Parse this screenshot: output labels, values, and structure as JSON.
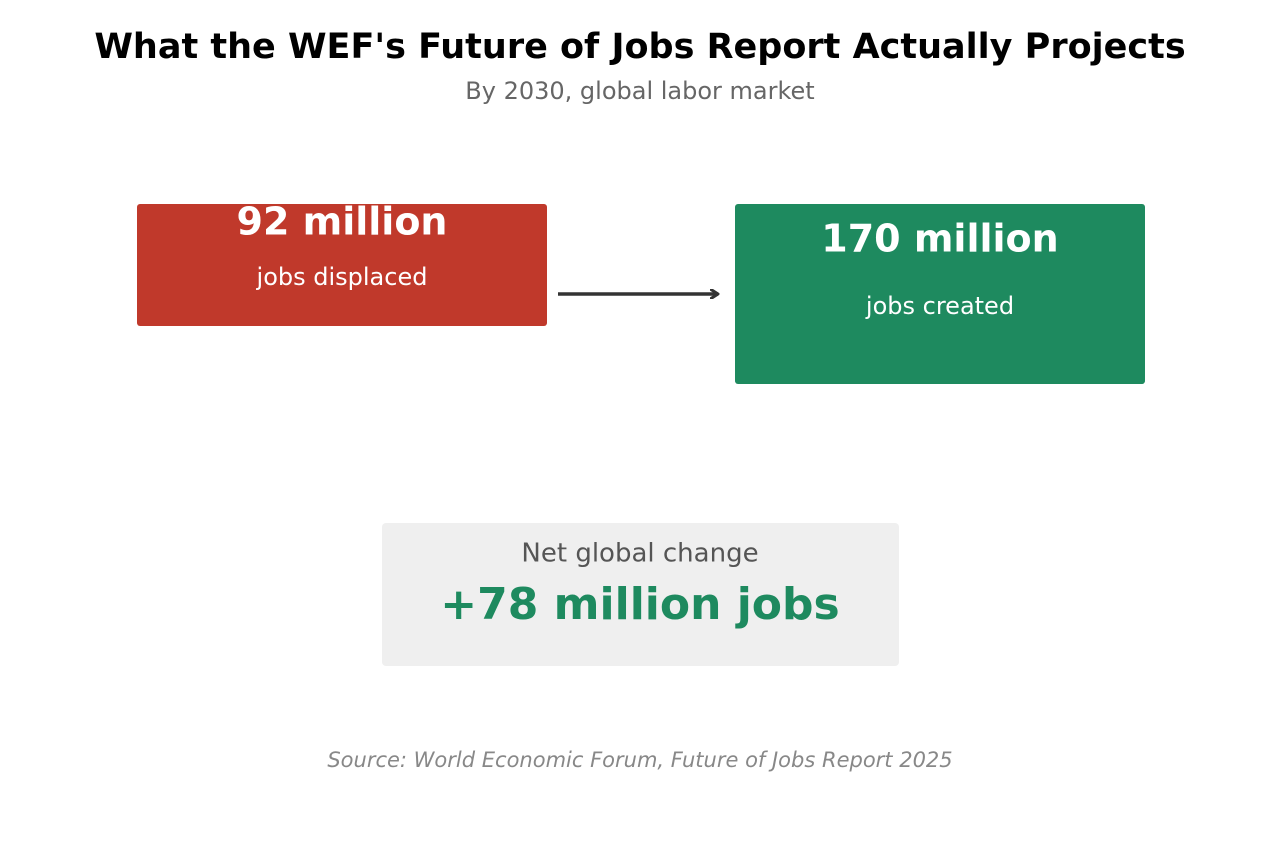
{
  "header": {
    "title": "What the WEF's Future of Jobs Report Actually Projects",
    "subtitle": "By 2030, global labor market"
  },
  "displaced": {
    "value": "92 million",
    "label": "jobs displaced"
  },
  "created": {
    "value": "170 million",
    "label": "jobs created"
  },
  "net": {
    "label": "Net global change",
    "value": "+78 million jobs"
  },
  "source": "Source: World Economic Forum, Future of Jobs Report 2025"
}
